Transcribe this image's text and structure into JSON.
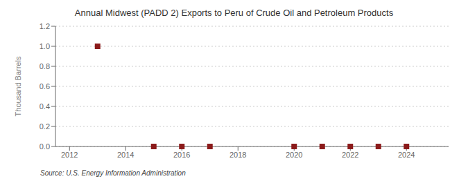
{
  "chart_data": {
    "type": "scatter",
    "title": "Annual Midwest (PADD 2) Exports to Peru of Crude Oil and Petroleum Products",
    "y_label": "Thousand Barrels",
    "annotations": [
      "Source: U.S. Energy Information Administration"
    ],
    "x": [
      2013,
      2015,
      2016,
      2017,
      2020,
      2021,
      2022,
      2023,
      2024
    ],
    "values": [
      1.0,
      0.0,
      0.0,
      0.0,
      0.0,
      0.0,
      0.0,
      0.0,
      0.0
    ],
    "color": "#8b1a1a",
    "marker": "square",
    "xlim": [
      2011.5,
      2025.5
    ],
    "xticks": [
      2012,
      2014,
      2016,
      2018,
      2020,
      2022,
      2024
    ],
    "ylim": [
      0.0,
      1.2
    ],
    "yticks": [
      {
        "value": 0.0,
        "label": "0.0"
      },
      0.2,
      0.4,
      0.6,
      0.8,
      {
        "value": 1.0,
        "label": "1.0"
      },
      1.2
    ],
    "grid": true
  }
}
